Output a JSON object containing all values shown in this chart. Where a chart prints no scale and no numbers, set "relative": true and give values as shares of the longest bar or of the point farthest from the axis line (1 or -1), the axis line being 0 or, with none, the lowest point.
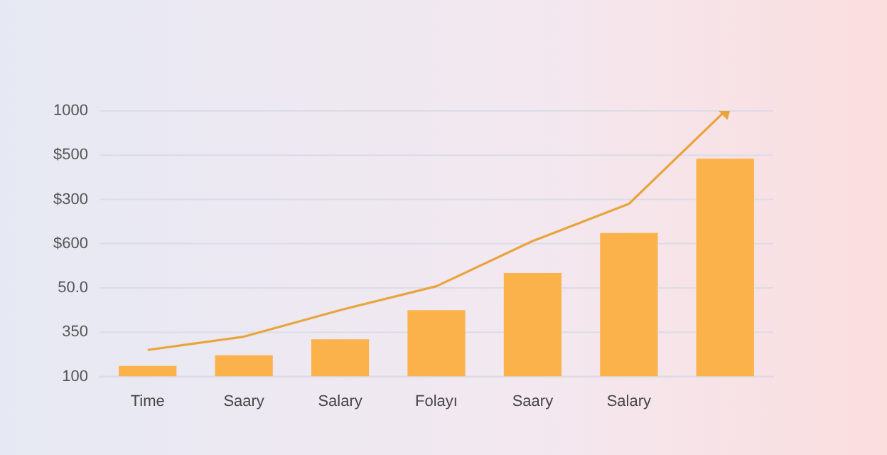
{
  "chart_data": {
    "type": "bar",
    "relative": true,
    "categories": [
      "Time",
      "Saary",
      "Salary",
      "Folayı",
      "Saary",
      "Salary",
      null
    ],
    "series": [
      {
        "color": "#fbb24a",
        "values": [
          0.04,
          0.08,
          0.14,
          0.25,
          0.39,
          0.54,
          0.82
        ]
      },
      {
        "type": "line",
        "color": "#e9a43c",
        "values": [
          0.1,
          0.15,
          0.25,
          0.34,
          0.51,
          0.65,
          1.0
        ]
      }
    ],
    "annotations": [
      "1000",
      "$500",
      "$300",
      "$600",
      "50.0",
      "350",
      "100"
    ],
    "grid": "y",
    "legend": false,
    "line_style": "solid"
  }
}
